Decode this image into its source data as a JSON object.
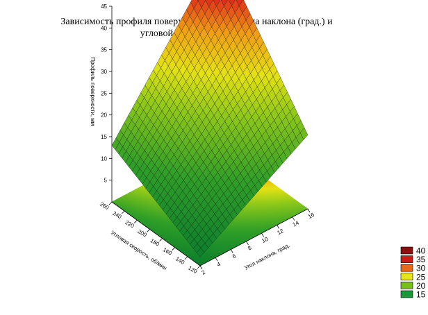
{
  "chart_data": {
    "type": "surface3d",
    "title_lines": [
      "Зависимость профиля поверхности (мм) от угла наклона (град.) и",
      "угловой скорости (об/мин.)"
    ],
    "xlabel": "Угол наклона, град.",
    "ylabel": "Угловая скорость, об/мин",
    "zlabel": "Профиль поверхности, мм",
    "x_ticks": [
      2,
      4,
      6,
      8,
      10,
      12,
      14,
      16
    ],
    "y_ticks": [
      120,
      140,
      160,
      180,
      200,
      220,
      240,
      260
    ],
    "z_ticks": [
      5,
      10,
      15,
      20,
      25,
      30,
      35,
      40,
      45
    ],
    "xlim": [
      2,
      16
    ],
    "ylim": [
      120,
      260
    ],
    "zlim": [
      0,
      45
    ],
    "corner_values": {
      "x_min_y_min": 2,
      "x_max_y_min": 17,
      "x_min_y_max": 13,
      "x_max_y_max": 45
    },
    "legend": [
      {
        "label": "40",
        "color": "#8b1010"
      },
      {
        "label": "35",
        "color": "#d31818"
      },
      {
        "label": "30",
        "color": "#ea6818"
      },
      {
        "label": "25",
        "color": "#e8e418"
      },
      {
        "label": "20",
        "color": "#78c018"
      },
      {
        "label": "15",
        "color": "#189838"
      }
    ],
    "colors": {
      "low": "#0f8a32",
      "mid_low": "#5ab81e",
      "mid": "#dde016",
      "mid_high": "#ee7a16",
      "high": "#d41c1c",
      "top": "#8a0c0c"
    }
  }
}
